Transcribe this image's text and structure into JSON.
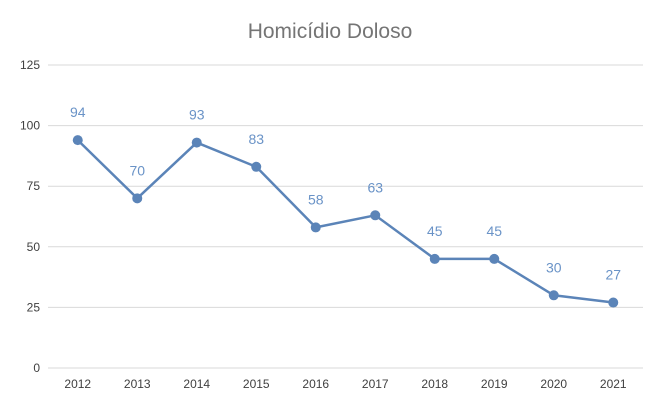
{
  "chart_data": {
    "type": "line",
    "title": "Homicídio Doloso",
    "xlabel": "",
    "ylabel": "",
    "categories": [
      "2012",
      "2013",
      "2014",
      "2015",
      "2016",
      "2017",
      "2018",
      "2019",
      "2020",
      "2021"
    ],
    "series": [
      {
        "values": [
          94,
          70,
          93,
          83,
          58,
          63,
          45,
          45,
          30,
          27
        ]
      }
    ],
    "ylim": [
      0,
      125
    ],
    "yticks": [
      "0",
      "25",
      "50",
      "75",
      "100",
      "125"
    ],
    "grid": true,
    "legend": "none",
    "data_labels": true,
    "line_color": "#5b84b8",
    "label_color": "#6a93c7",
    "grid_color": "#d9d9d9"
  }
}
